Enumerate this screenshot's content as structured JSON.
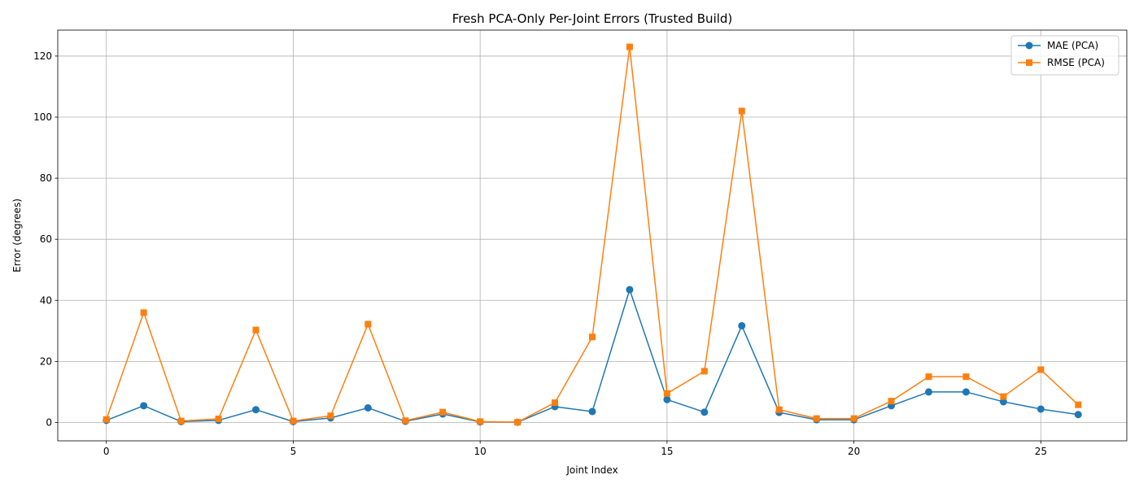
{
  "chart_data": {
    "type": "line",
    "title": "Fresh PCA-Only Per-Joint Errors (Trusted Build)",
    "xlabel": "Joint Index",
    "ylabel": "Error (degrees)",
    "xlim": [
      -1.3,
      27.3
    ],
    "ylim": [
      -6,
      128.5
    ],
    "xticks": [
      0,
      5,
      10,
      15,
      20,
      25
    ],
    "yticks": [
      0,
      20,
      40,
      60,
      80,
      100,
      120
    ],
    "grid": true,
    "legend_position": "top-right",
    "x": [
      0,
      1,
      2,
      3,
      4,
      5,
      6,
      7,
      8,
      9,
      10,
      11,
      12,
      13,
      14,
      15,
      16,
      17,
      18,
      19,
      20,
      21,
      22,
      23,
      24,
      25,
      26
    ],
    "series": [
      {
        "name": "MAE (PCA)",
        "color": "#1f77b4",
        "marker": "circle",
        "values": [
          0.7,
          5.5,
          0.3,
          0.7,
          4.2,
          0.3,
          1.5,
          4.8,
          0.4,
          2.8,
          0.2,
          0.1,
          5.2,
          3.6,
          43.5,
          7.5,
          3.4,
          31.7,
          3.3,
          0.9,
          0.9,
          5.5,
          10.0,
          10.0,
          6.8,
          4.4,
          2.6
        ]
      },
      {
        "name": "RMSE (PCA)",
        "color": "#ff7f0e",
        "marker": "square",
        "values": [
          1.0,
          36.0,
          0.5,
          1.2,
          30.3,
          0.5,
          2.2,
          32.2,
          0.6,
          3.4,
          0.3,
          0.1,
          6.5,
          28.0,
          123.0,
          9.5,
          16.8,
          102.0,
          4.2,
          1.3,
          1.3,
          7.0,
          15.0,
          15.0,
          8.5,
          17.3,
          5.8
        ]
      }
    ]
  }
}
